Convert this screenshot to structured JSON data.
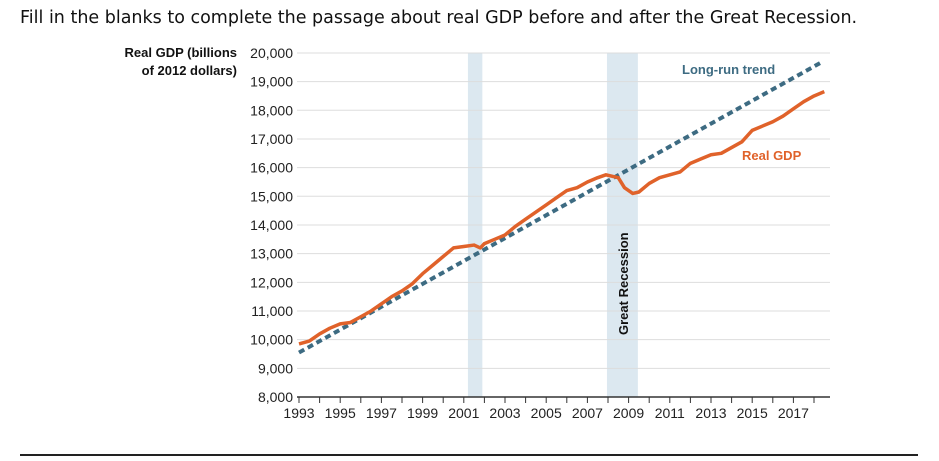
{
  "prompt": "Fill in the blanks to complete the passage about real GDP before and after the Great Recession.",
  "chart_data": {
    "type": "line",
    "ylabel_lines": [
      "Real GDP (billions",
      "of 2012 dollars)"
    ],
    "ylim": [
      8000,
      20000
    ],
    "yticks": [
      "8,000",
      "9,000",
      "10,000",
      "11,000",
      "12,000",
      "13,000",
      "14,000",
      "15,000",
      "16,000",
      "17,000",
      "18,000",
      "19,000",
      "20,000"
    ],
    "xticks": [
      "1993",
      "1995",
      "1997",
      "1999",
      "2001",
      "2003",
      "2005",
      "2007",
      "2009",
      "2011",
      "2013",
      "2015",
      "2017"
    ],
    "grid": true,
    "shaded_periods": [
      {
        "label": "",
        "start": 2001.2,
        "end": 2001.9
      },
      {
        "label": "Great Recession",
        "start": 2007.95,
        "end": 2009.45
      }
    ],
    "series": [
      {
        "name": "Real GDP",
        "color": "#e0622a",
        "style": "solid",
        "x": [
          1993,
          1993.5,
          1994,
          1994.5,
          1995,
          1995.5,
          1996,
          1996.5,
          1997,
          1997.5,
          1998,
          1998.5,
          1999,
          1999.5,
          2000,
          2000.5,
          2001,
          2001.5,
          2001.8,
          2002,
          2002.5,
          2003,
          2003.5,
          2004,
          2004.5,
          2005,
          2005.5,
          2006,
          2006.5,
          2007,
          2007.5,
          2007.9,
          2008.5,
          2008.8,
          2009.2,
          2009.5,
          2010,
          2010.5,
          2011,
          2011.5,
          2012,
          2012.5,
          2013,
          2013.5,
          2014,
          2014.5,
          2015,
          2015.5,
          2016,
          2016.5,
          2017,
          2017.5,
          2018,
          2018.5
        ],
        "y": [
          9850,
          9950,
          10200,
          10400,
          10550,
          10600,
          10800,
          11000,
          11250,
          11500,
          11700,
          11950,
          12300,
          12600,
          12900,
          13200,
          13250,
          13300,
          13200,
          13350,
          13500,
          13650,
          13950,
          14200,
          14450,
          14700,
          14950,
          15200,
          15300,
          15500,
          15650,
          15750,
          15650,
          15300,
          15100,
          15150,
          15450,
          15650,
          15750,
          15850,
          16150,
          16300,
          16450,
          16500,
          16700,
          16900,
          17300,
          17450,
          17600,
          17800,
          18050,
          18300,
          18500,
          18650
        ]
      },
      {
        "name": "Long-run trend",
        "color": "#3d6b82",
        "style": "dashed",
        "x": [
          1993,
          2018.3
        ],
        "y": [
          9550,
          19650
        ]
      }
    ],
    "annotations": [
      "Long-run trend",
      "Real GDP",
      "Great Recession"
    ]
  }
}
